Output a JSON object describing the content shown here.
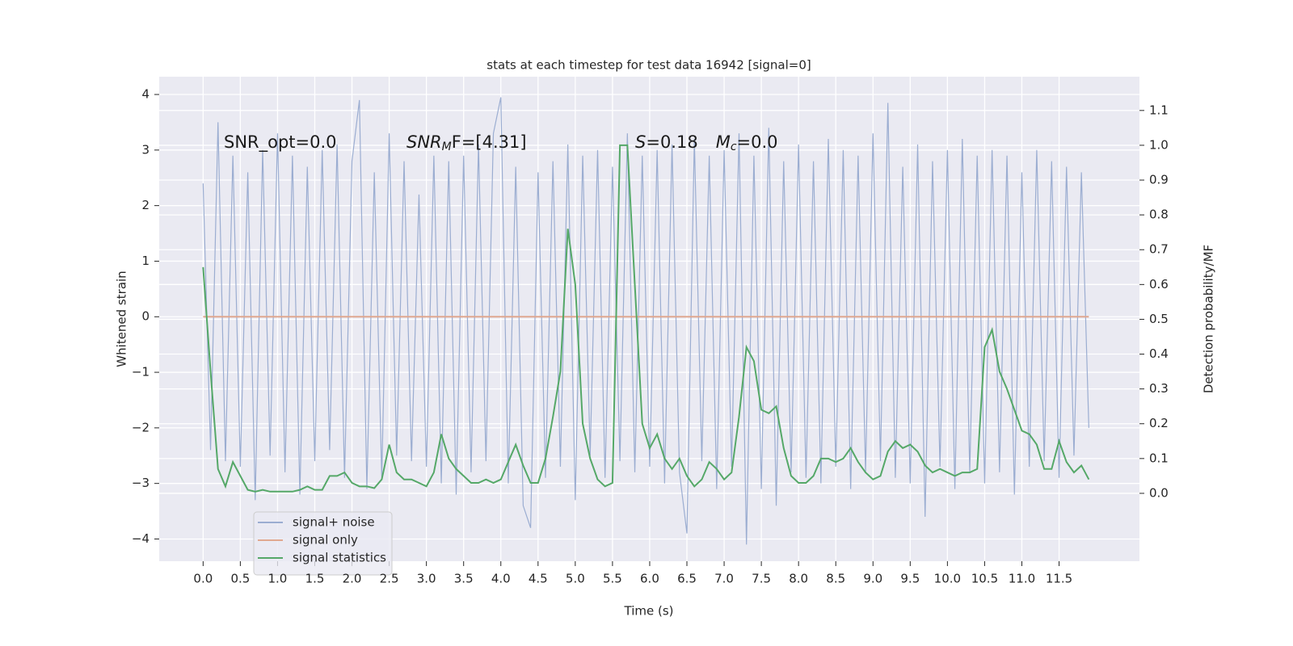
{
  "chart_data": {
    "type": "line",
    "title": "stats at each timestep for test data 16942 [signal=0]",
    "x_label": "Time (s)",
    "y_label": "Whitened strain",
    "y2_label": "Detection probability/MF",
    "annotations": [
      [
        "SNR_opt=0.0"
      ],
      [
        "SNR",
        "M",
        "F=[4.31]"
      ],
      [
        "S",
        "=0.18",
        "M",
        "c",
        "=0.0"
      ]
    ],
    "grid": true,
    "legend": "lower left",
    "xlim": [
      -0.59,
      12.58
    ],
    "ylim": [
      -4.4,
      4.32
    ],
    "y2lim": [
      -0.195,
      1.197
    ],
    "xticks": [
      {
        "value": 0,
        "label": "0.0"
      },
      0.5,
      {
        "value": 1,
        "label": "1.0"
      },
      1.5,
      {
        "value": 2,
        "label": "2.0"
      },
      2.5,
      {
        "value": 3,
        "label": "3.0"
      },
      3.5,
      {
        "value": 4,
        "label": "4.0"
      },
      4.5,
      {
        "value": 5,
        "label": "5.0"
      },
      5.5,
      {
        "value": 6,
        "label": "6.0"
      },
      6.5,
      {
        "value": 7,
        "label": "7.0"
      },
      7.5,
      {
        "value": 8,
        "label": "8.0"
      },
      8.5,
      {
        "value": 9,
        "label": "9.0"
      },
      9.5,
      {
        "value": 10,
        "label": "10.0"
      },
      10.5,
      {
        "value": 11,
        "label": "11.0"
      },
      11.5
    ],
    "yticks": [
      {
        "value": -4,
        "label": "−4"
      },
      {
        "value": -3,
        "label": "−3"
      },
      {
        "value": -2,
        "label": "−2"
      },
      {
        "value": -1,
        "label": "−1"
      },
      0,
      1,
      2,
      3,
      4
    ],
    "y2ticks": [
      {
        "value": 0,
        "label": "0.0"
      },
      0.1,
      0.2,
      0.3,
      0.4,
      0.5,
      0.6,
      0.7,
      0.8,
      0.9,
      {
        "value": 1,
        "label": "1.0"
      },
      1.1
    ],
    "x": [
      0.0,
      0.1,
      0.2,
      0.3,
      0.4,
      0.5,
      0.6,
      0.7,
      0.8,
      0.9,
      1.0,
      1.1,
      1.2,
      1.3,
      1.4,
      1.5,
      1.6,
      1.7,
      1.8,
      1.9,
      2.0,
      2.1,
      2.2,
      2.3,
      2.4,
      2.5,
      2.6,
      2.7,
      2.8,
      2.9,
      3.0,
      3.1,
      3.2,
      3.3,
      3.4,
      3.5,
      3.6,
      3.7,
      3.8,
      3.9,
      4.0,
      4.1,
      4.2,
      4.3,
      4.4,
      4.5,
      4.6,
      4.7,
      4.8,
      4.9,
      5.0,
      5.1,
      5.2,
      5.3,
      5.4,
      5.5,
      5.6,
      5.7,
      5.8,
      5.9,
      6.0,
      6.1,
      6.2,
      6.3,
      6.4,
      6.5,
      6.6,
      6.7,
      6.8,
      6.9,
      7.0,
      7.1,
      7.2,
      7.3,
      7.4,
      7.5,
      7.6,
      7.7,
      7.8,
      7.9,
      8.0,
      8.1,
      8.2,
      8.3,
      8.4,
      8.5,
      8.6,
      8.7,
      8.8,
      8.9,
      9.0,
      9.1,
      9.2,
      9.3,
      9.4,
      9.5,
      9.6,
      9.7,
      9.8,
      9.9,
      10.0,
      10.1,
      10.2,
      10.3,
      10.4,
      10.5,
      10.6,
      10.7,
      10.8,
      10.9,
      11.0,
      11.1,
      11.2,
      11.3,
      11.4,
      11.5,
      11.6,
      11.7,
      11.8,
      11.9
    ],
    "series": [
      {
        "name": "signal+ noise",
        "color": "#9badd1",
        "values": [
          2.4,
          -2.4,
          3.5,
          -2.6,
          2.9,
          -2.7,
          2.6,
          -3.3,
          3.0,
          -2.5,
          3.3,
          -2.8,
          2.9,
          -3.2,
          2.7,
          -2.6,
          3.0,
          -2.4,
          3.1,
          -2.9,
          2.8,
          3.9,
          -3.1,
          2.6,
          -2.9,
          3.3,
          -2.5,
          2.8,
          -2.6,
          2.2,
          -2.7,
          2.9,
          -3.0,
          2.8,
          -3.2,
          2.9,
          -2.8,
          3.1,
          -2.6,
          3.3,
          3.95,
          -3.0,
          2.7,
          -3.4,
          -3.8,
          2.6,
          -2.9,
          2.8,
          -2.7,
          3.1,
          -3.3,
          2.9,
          -2.5,
          3.0,
          -2.9,
          2.7,
          -2.6,
          3.3,
          -2.8,
          2.9,
          -2.7,
          3.0,
          -3.0,
          3.1,
          -2.8,
          -3.9,
          3.2,
          -2.6,
          2.9,
          -3.1,
          3.0,
          -2.7,
          3.3,
          -4.1,
          2.9,
          -3.1,
          3.4,
          -3.4,
          2.8,
          -2.8,
          3.1,
          -2.9,
          2.8,
          -3.0,
          3.2,
          -2.7,
          3.0,
          -3.1,
          2.9,
          -2.8,
          3.3,
          -2.6,
          3.85,
          -2.9,
          2.7,
          -3.0,
          3.1,
          -3.6,
          2.8,
          -2.7,
          3.0,
          -3.1,
          3.2,
          -2.8,
          2.9,
          -3.0,
          3.0,
          -2.8,
          2.9,
          -3.2,
          2.6,
          -2.7,
          3.0,
          -2.6,
          2.8,
          -2.9,
          2.7,
          -2.5,
          2.6,
          -2.0
        ]
      },
      {
        "name": "signal only",
        "color": "#e0a890",
        "x": [
          0.0,
          11.9
        ],
        "values": [
          0,
          0
        ]
      },
      {
        "name": "signal statistics",
        "color": "#55a868",
        "axis": "y2",
        "values": [
          0.65,
          0.35,
          0.07,
          0.02,
          0.09,
          0.05,
          0.01,
          0.005,
          0.01,
          0.005,
          0.005,
          0.005,
          0.005,
          0.01,
          0.02,
          0.01,
          0.01,
          0.05,
          0.05,
          0.06,
          0.03,
          0.02,
          0.02,
          0.015,
          0.04,
          0.14,
          0.06,
          0.04,
          0.04,
          0.03,
          0.02,
          0.06,
          0.17,
          0.1,
          0.07,
          0.05,
          0.03,
          0.03,
          0.04,
          0.03,
          0.04,
          0.09,
          0.14,
          0.08,
          0.03,
          0.03,
          0.1,
          0.22,
          0.35,
          0.76,
          0.6,
          0.2,
          0.1,
          0.04,
          0.02,
          0.03,
          1.0,
          1.0,
          0.6,
          0.2,
          0.13,
          0.17,
          0.1,
          0.07,
          0.1,
          0.05,
          0.02,
          0.04,
          0.09,
          0.07,
          0.04,
          0.06,
          0.22,
          0.42,
          0.38,
          0.24,
          0.23,
          0.25,
          0.13,
          0.05,
          0.03,
          0.03,
          0.05,
          0.1,
          0.1,
          0.09,
          0.1,
          0.13,
          0.09,
          0.06,
          0.04,
          0.05,
          0.12,
          0.15,
          0.13,
          0.14,
          0.12,
          0.08,
          0.06,
          0.07,
          0.06,
          0.05,
          0.06,
          0.06,
          0.07,
          0.42,
          0.47,
          0.35,
          0.3,
          0.24,
          0.18,
          0.17,
          0.14,
          0.07,
          0.07,
          0.15,
          0.09,
          0.06,
          0.08,
          0.04
        ]
      }
    ]
  }
}
